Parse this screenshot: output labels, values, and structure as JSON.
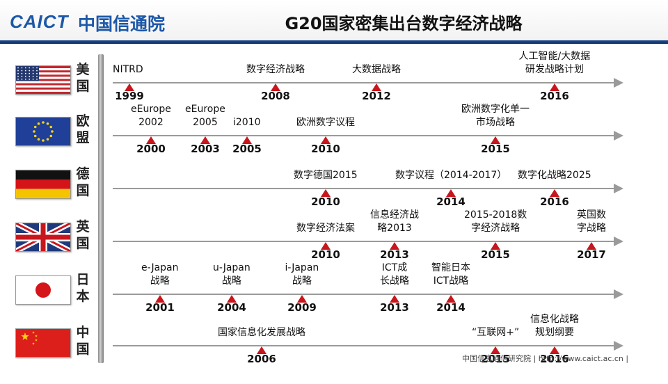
{
  "header": {
    "logo_mark": "CAICT",
    "logo_text": "中国信通院",
    "title": "G20国家密集出台数字经济战略"
  },
  "footer": {
    "text": "中国信息通信研究院 | http://www.caict.ac.cn |"
  },
  "colors": {
    "marker": "#c8161d",
    "axis": "#9a9a9a",
    "brand": "#1d58a8"
  },
  "countries": [
    {
      "name": "美国",
      "flag": "usa-flag-icon",
      "events": [
        {
          "year": "1999",
          "label": "NITRD"
        },
        {
          "year": "2008",
          "label": "数字经济战略"
        },
        {
          "year": "2012",
          "label": "大数据战略"
        },
        {
          "year": "2016",
          "label": "人工智能/大数据\n研发战略计划"
        }
      ]
    },
    {
      "name": "欧盟",
      "flag": "eu-flag-icon",
      "events": [
        {
          "year": "2000",
          "label": "eEurope\n2002"
        },
        {
          "year": "2003",
          "label": "eEurope\n2005"
        },
        {
          "year": "2005",
          "label": "i2010"
        },
        {
          "year": "2010",
          "label": "欧洲数字议程"
        },
        {
          "year": "2015",
          "label": "欧洲数字化单一\n市场战略"
        }
      ]
    },
    {
      "name": "德国",
      "flag": "germany-flag-icon",
      "events": [
        {
          "year": "2010",
          "label": "数字德国2015"
        },
        {
          "year": "2014",
          "label": "数字议程（2014-2017）"
        },
        {
          "year": "2016",
          "label": "数字化战略2025"
        }
      ]
    },
    {
      "name": "英国",
      "flag": "uk-flag-icon",
      "events": [
        {
          "year": "2010",
          "label": "数字经济法案"
        },
        {
          "year": "2013",
          "label": "信息经济战\n略2013"
        },
        {
          "year": "2015",
          "label": "2015-2018数\n字经济战略"
        },
        {
          "year": "2017",
          "label": "英国数\n字战略"
        }
      ]
    },
    {
      "name": "日本",
      "flag": "japan-flag-icon",
      "events": [
        {
          "year": "2001",
          "label": "e-Japan\n战略"
        },
        {
          "year": "2004",
          "label": "u-Japan\n战略"
        },
        {
          "year": "2009",
          "label": "i-Japan\n战略"
        },
        {
          "year": "2013",
          "label": "ICT成\n长战略"
        },
        {
          "year": "2014",
          "label": "智能日本\nICT战略"
        }
      ]
    },
    {
      "name": "中国",
      "flag": "china-flag-icon",
      "events": [
        {
          "year": "2006",
          "label": "国家信息化发展战略"
        },
        {
          "year": "2015",
          "label": "“互联网+”"
        },
        {
          "year": "2016",
          "label": "信息化战略\n规划纲要"
        }
      ]
    }
  ]
}
